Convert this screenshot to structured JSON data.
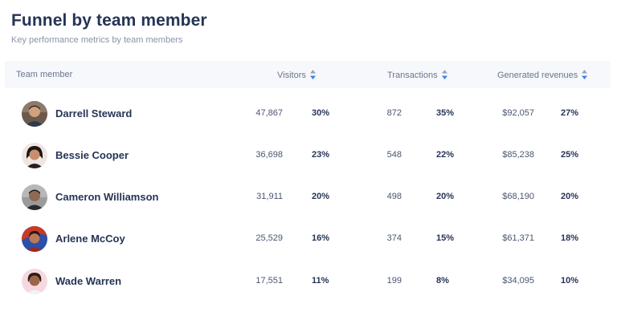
{
  "title": "Funnel by team member",
  "subtitle": "Key performance metrics by team members",
  "columns": {
    "member": "Team member",
    "visitors": "Visitors",
    "transactions": "Transactions",
    "revenues": "Generated revenues"
  },
  "icons": {
    "sort": "sort-arrows-icon",
    "avatar": "avatar"
  },
  "colors": {
    "title": "#263456",
    "header_bg": "#f6f8fb",
    "sort_up": "#9aa3b8",
    "sort_down": "#3b82f6"
  },
  "rows": [
    {
      "name": "Darrell Steward",
      "visitors": "47,867",
      "visitors_pct": "30%",
      "transactions": "872",
      "transactions_pct": "35%",
      "revenue": "$92,057",
      "revenue_pct": "27%"
    },
    {
      "name": "Bessie Cooper",
      "visitors": "36,698",
      "visitors_pct": "23%",
      "transactions": "548",
      "transactions_pct": "22%",
      "revenue": "$85,238",
      "revenue_pct": "25%"
    },
    {
      "name": "Cameron Williamson",
      "visitors": "31,911",
      "visitors_pct": "20%",
      "transactions": "498",
      "transactions_pct": "20%",
      "revenue": "$68,190",
      "revenue_pct": "20%"
    },
    {
      "name": "Arlene McCoy",
      "visitors": "25,529",
      "visitors_pct": "16%",
      "transactions": "374",
      "transactions_pct": "15%",
      "revenue": "$61,371",
      "revenue_pct": "18%"
    },
    {
      "name": "Wade Warren",
      "visitors": "17,551",
      "visitors_pct": "11%",
      "transactions": "199",
      "transactions_pct": "8%",
      "revenue": "$34,095",
      "revenue_pct": "10%"
    }
  ]
}
